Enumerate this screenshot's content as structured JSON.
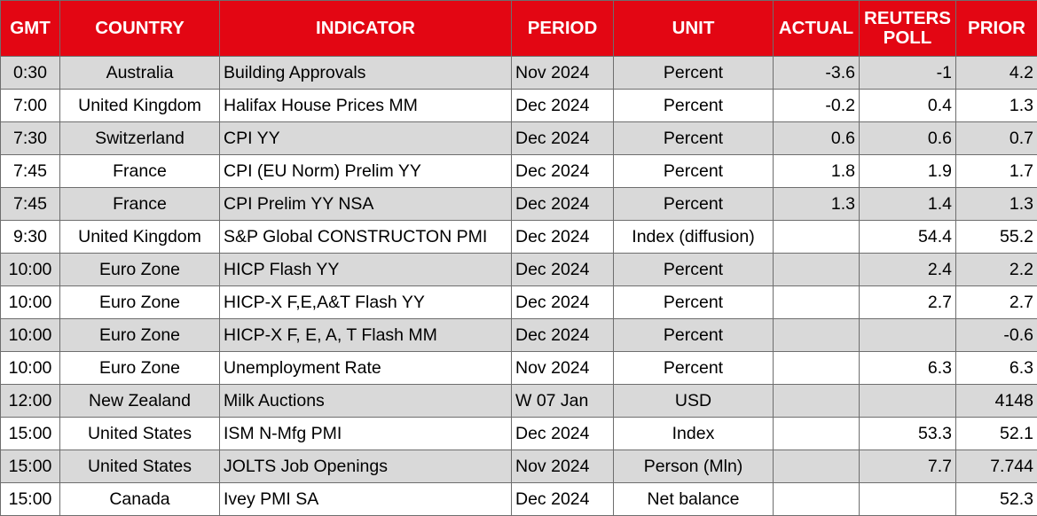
{
  "headers": {
    "gmt": "GMT",
    "country": "COUNTRY",
    "indicator": "INDICATOR",
    "period": "PERIOD",
    "unit": "UNIT",
    "actual": "ACTUAL",
    "poll_line1": "REUTERS",
    "poll_line2": "POLL",
    "prior": "PRIOR"
  },
  "colors": {
    "header_bg": "#e30613",
    "header_text": "#ffffff",
    "row_shaded": "#d9d9d9",
    "row_plain": "#ffffff"
  },
  "rows": [
    {
      "gmt": "0:30",
      "country": "Australia",
      "indicator": "Building Approvals",
      "period": "Nov 2024",
      "unit": "Percent",
      "actual": "-3.6",
      "poll": "-1",
      "prior": "4.2"
    },
    {
      "gmt": "7:00",
      "country": "United Kingdom",
      "indicator": "Halifax House Prices MM",
      "period": "Dec 2024",
      "unit": "Percent",
      "actual": "-0.2",
      "poll": "0.4",
      "prior": "1.3"
    },
    {
      "gmt": "7:30",
      "country": "Switzerland",
      "indicator": "CPI YY",
      "period": "Dec 2024",
      "unit": "Percent",
      "actual": "0.6",
      "poll": "0.6",
      "prior": "0.7"
    },
    {
      "gmt": "7:45",
      "country": "France",
      "indicator": "CPI (EU Norm) Prelim YY",
      "period": "Dec 2024",
      "unit": "Percent",
      "actual": "1.8",
      "poll": "1.9",
      "prior": "1.7"
    },
    {
      "gmt": "7:45",
      "country": "France",
      "indicator": "CPI Prelim YY NSA",
      "period": "Dec 2024",
      "unit": "Percent",
      "actual": "1.3",
      "poll": "1.4",
      "prior": "1.3"
    },
    {
      "gmt": "9:30",
      "country": "United Kingdom",
      "indicator": "S&P Global CONSTRUCTON PMI",
      "period": "Dec 2024",
      "unit": "Index (diffusion)",
      "actual": "",
      "poll": "54.4",
      "prior": "55.2"
    },
    {
      "gmt": "10:00",
      "country": "Euro Zone",
      "indicator": "HICP Flash YY",
      "period": "Dec 2024",
      "unit": "Percent",
      "actual": "",
      "poll": "2.4",
      "prior": "2.2"
    },
    {
      "gmt": "10:00",
      "country": "Euro Zone",
      "indicator": "HICP-X F,E,A&T Flash YY",
      "period": "Dec 2024",
      "unit": "Percent",
      "actual": "",
      "poll": "2.7",
      "prior": "2.7"
    },
    {
      "gmt": "10:00",
      "country": "Euro Zone",
      "indicator": "HICP-X F, E, A, T Flash MM",
      "period": "Dec 2024",
      "unit": "Percent",
      "actual": "",
      "poll": "",
      "prior": "-0.6"
    },
    {
      "gmt": "10:00",
      "country": "Euro Zone",
      "indicator": "Unemployment Rate",
      "period": "Nov 2024",
      "unit": "Percent",
      "actual": "",
      "poll": "6.3",
      "prior": "6.3"
    },
    {
      "gmt": "12:00",
      "country": "New Zealand",
      "indicator": "Milk Auctions",
      "period": "W 07 Jan",
      "unit": "USD",
      "actual": "",
      "poll": "",
      "prior": "4148"
    },
    {
      "gmt": "15:00",
      "country": "United States",
      "indicator": "ISM N-Mfg PMI",
      "period": "Dec 2024",
      "unit": "Index",
      "actual": "",
      "poll": "53.3",
      "prior": "52.1"
    },
    {
      "gmt": "15:00",
      "country": "United States",
      "indicator": "JOLTS Job Openings",
      "period": "Nov 2024",
      "unit": "Person (Mln)",
      "actual": "",
      "poll": "7.7",
      "prior": "7.744"
    },
    {
      "gmt": "15:00",
      "country": "Canada",
      "indicator": "Ivey PMI SA",
      "period": "Dec 2024",
      "unit": "Net balance",
      "actual": "",
      "poll": "",
      "prior": "52.3"
    }
  ]
}
